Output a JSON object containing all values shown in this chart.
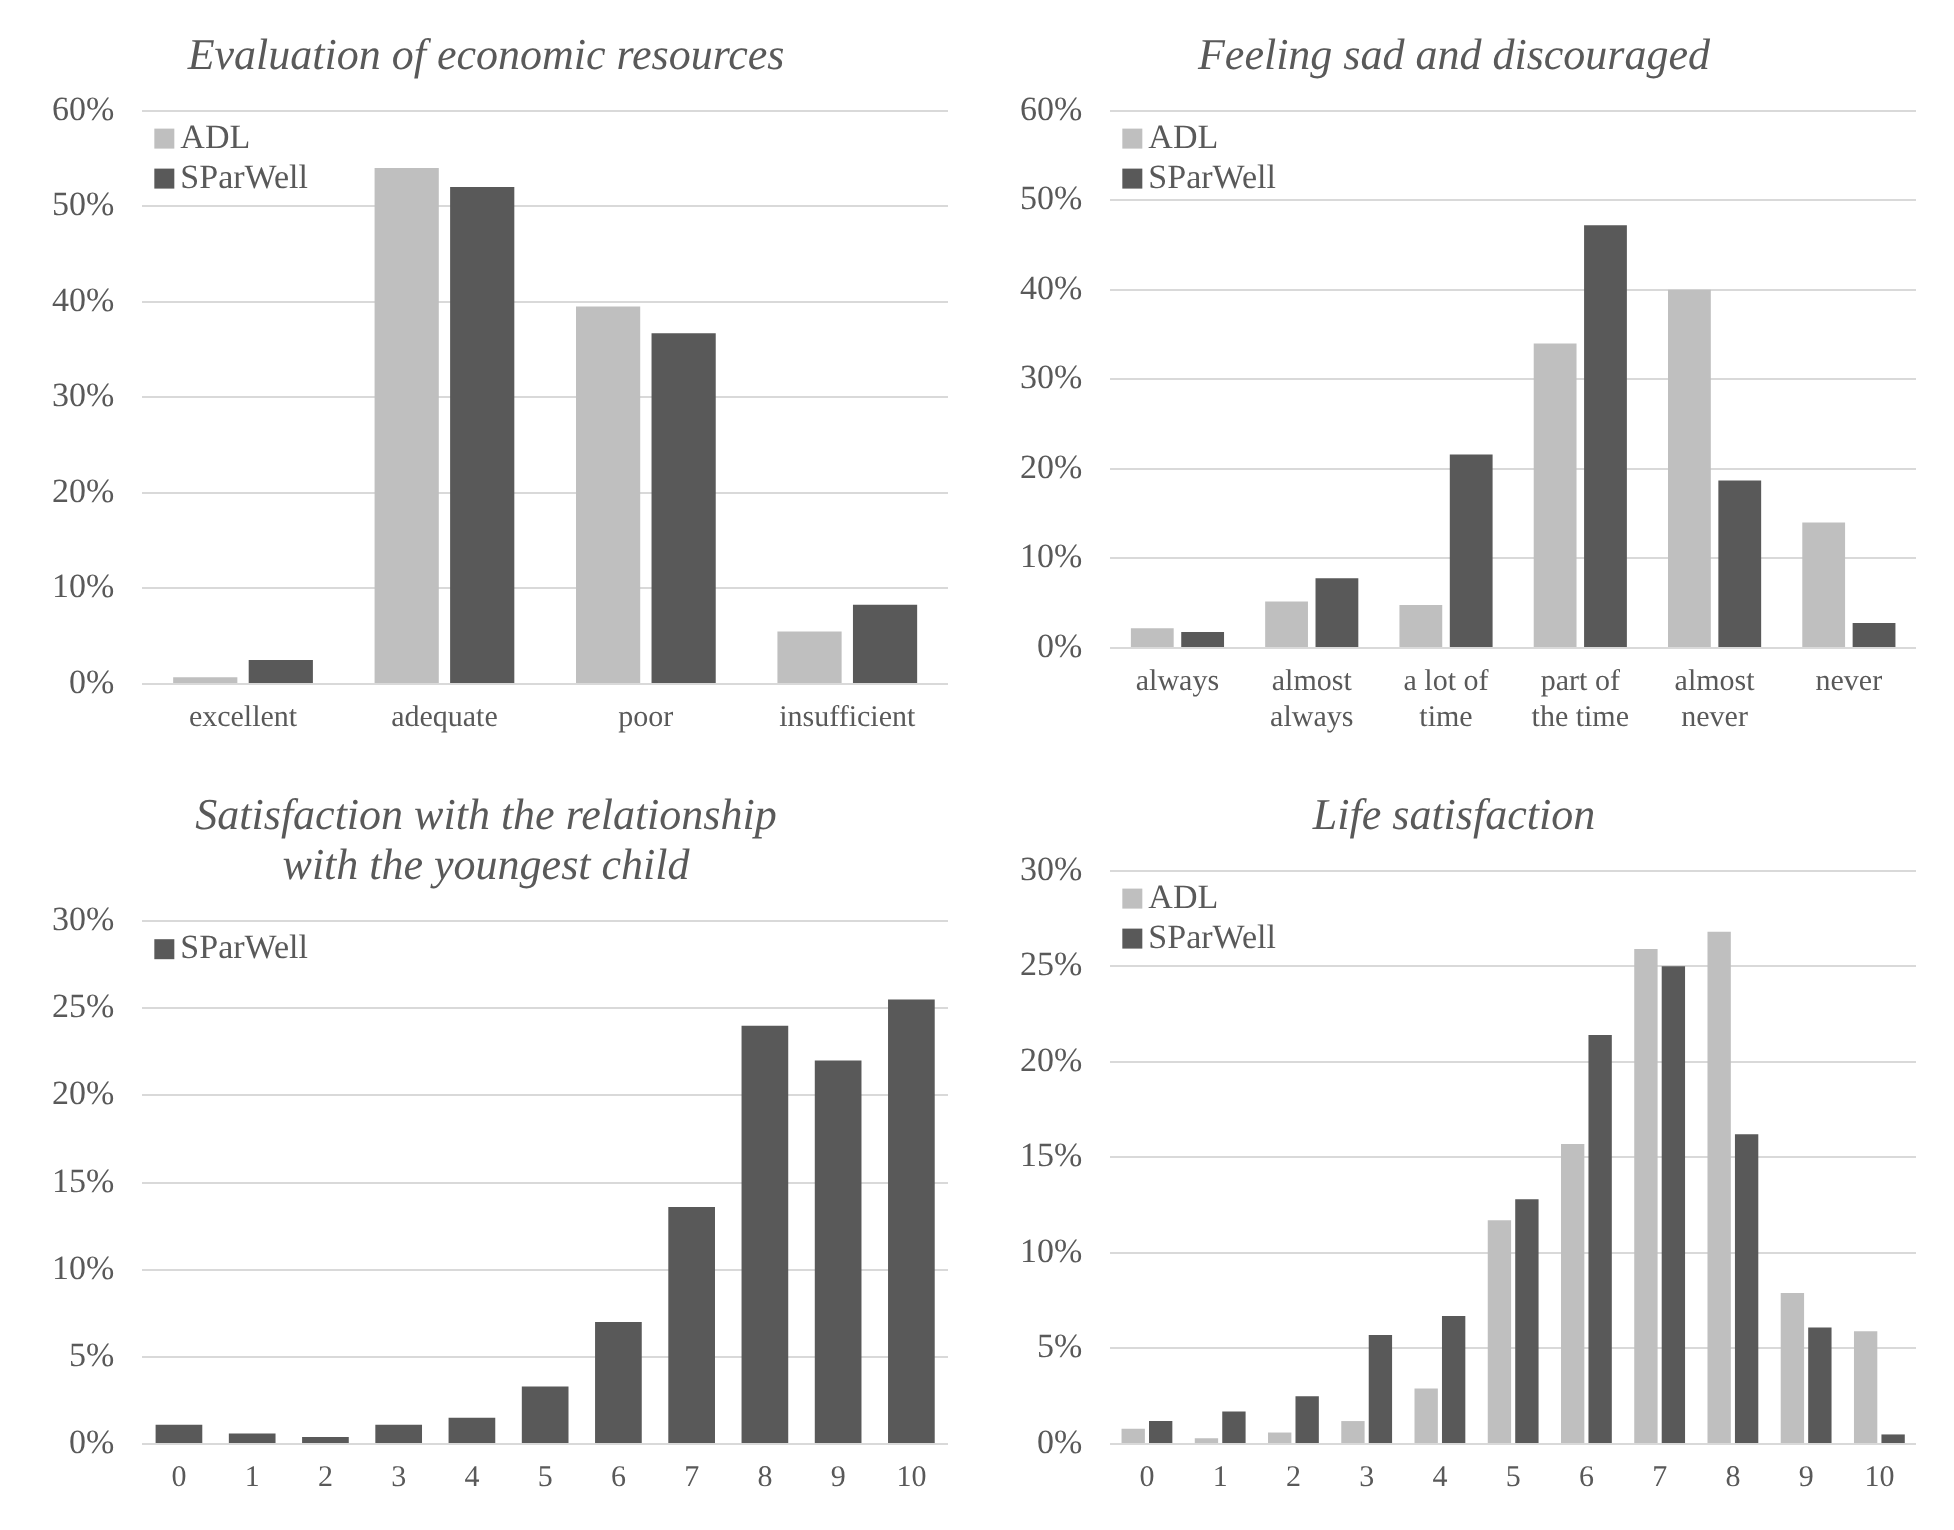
{
  "chart_data": [
    {
      "type": "bar",
      "title": "Evaluation of economic resources",
      "categories": [
        "excellent",
        "adequate",
        "poor",
        "insufficient"
      ],
      "series": [
        {
          "name": "ADL",
          "color": "#bfbfbf",
          "values": [
            0.7,
            54,
            39.5,
            5.5
          ]
        },
        {
          "name": "SParWell",
          "color": "#595959",
          "values": [
            2.5,
            52,
            36.7,
            8.3
          ]
        }
      ],
      "ylim": [
        0,
        60
      ],
      "yticks": [
        {
          "value": 0,
          "label": "0%"
        },
        {
          "value": 10,
          "label": "10%"
        },
        {
          "value": 20,
          "label": "20%"
        },
        {
          "value": 30,
          "label": "30%"
        },
        {
          "value": 40,
          "label": "40%"
        },
        {
          "value": 50,
          "label": "50%"
        },
        {
          "value": 60,
          "label": "60%"
        }
      ],
      "grid": "y",
      "legend": "top left"
    },
    {
      "type": "bar",
      "title": "Feeling sad and discouraged",
      "categories": [
        "always",
        "almost always",
        "a lot of time",
        "part of the time",
        "almost never",
        "never"
      ],
      "series": [
        {
          "name": "ADL",
          "color": "#bfbfbf",
          "values": [
            2.2,
            5.2,
            4.8,
            34,
            40,
            14
          ]
        },
        {
          "name": "SParWell",
          "color": "#595959",
          "values": [
            1.8,
            7.8,
            21.6,
            47.2,
            18.7,
            2.8
          ]
        }
      ],
      "ylim": [
        0,
        60
      ],
      "yticks": [
        {
          "value": 0,
          "label": "0%"
        },
        {
          "value": 10,
          "label": "10%"
        },
        {
          "value": 20,
          "label": "20%"
        },
        {
          "value": 30,
          "label": "30%"
        },
        {
          "value": 40,
          "label": "40%"
        },
        {
          "value": 50,
          "label": "50%"
        },
        {
          "value": 60,
          "label": "60%"
        }
      ],
      "grid": "y",
      "legend": "top left"
    },
    {
      "type": "bar",
      "title": "Satisfaction with the relationship with the youngest child",
      "categories": [
        "0",
        "1",
        "2",
        "3",
        "4",
        "5",
        "6",
        "7",
        "8",
        "9",
        "10"
      ],
      "series": [
        {
          "name": "SParWell",
          "color": "#595959",
          "values": [
            1.1,
            0.6,
            0.4,
            1.1,
            1.5,
            3.3,
            7,
            13.6,
            24,
            22,
            25.5
          ]
        }
      ],
      "ylim": [
        0,
        30
      ],
      "yticks": [
        {
          "value": 0,
          "label": "0%"
        },
        {
          "value": 5,
          "label": "5%"
        },
        {
          "value": 10,
          "label": "10%"
        },
        {
          "value": 15,
          "label": "15%"
        },
        {
          "value": 20,
          "label": "20%"
        },
        {
          "value": 25,
          "label": "25%"
        },
        {
          "value": 30,
          "label": "30%"
        }
      ],
      "grid": "y",
      "legend": "top left"
    },
    {
      "type": "bar",
      "title": "Life satisfaction",
      "categories": [
        "0",
        "1",
        "2",
        "3",
        "4",
        "5",
        "6",
        "7",
        "8",
        "9",
        "10"
      ],
      "series": [
        {
          "name": "ADL",
          "color": "#bfbfbf",
          "values": [
            0.8,
            0.3,
            0.6,
            1.2,
            2.9,
            11.7,
            15.7,
            25.9,
            26.8,
            7.9,
            5.9
          ]
        },
        {
          "name": "SParWell",
          "color": "#595959",
          "values": [
            1.2,
            1.7,
            2.5,
            5.7,
            6.7,
            12.8,
            21.4,
            25,
            16.2,
            6.1,
            0.5
          ]
        }
      ],
      "ylim": [
        0,
        30
      ],
      "yticks": [
        {
          "value": 0,
          "label": "0%"
        },
        {
          "value": 5,
          "label": "5%"
        },
        {
          "value": 10,
          "label": "10%"
        },
        {
          "value": 15,
          "label": "15%"
        },
        {
          "value": 20,
          "label": "20%"
        },
        {
          "value": 25,
          "label": "25%"
        },
        {
          "value": 30,
          "label": "30%"
        }
      ],
      "grid": "y",
      "legend": "top left"
    }
  ]
}
